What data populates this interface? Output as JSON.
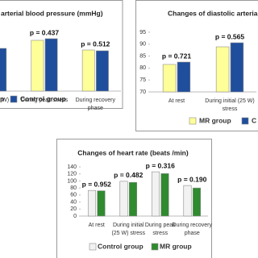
{
  "chart_data": [
    {
      "type": "bar",
      "title": "arterial blood pressure (mmHg)",
      "categories": [
        "initial (25 W)",
        "During peak stress",
        "During recovery phase"
      ],
      "series": [
        {
          "name": "p",
          "color": "#ffff99",
          "values": [
            null,
            163,
            151
          ]
        },
        {
          "name": "Control group",
          "color": "#1f4e9c",
          "values": [
            153,
            165,
            150
          ]
        }
      ],
      "annotations": [
        "02",
        "p = 0.437",
        "p = 0.512"
      ],
      "ylim": [
        100,
        200
      ]
    },
    {
      "type": "bar",
      "title": "Changes of diastolic arteria",
      "categories": [
        "At rest",
        "During initial (25 W) stress"
      ],
      "series": [
        {
          "name": "MR group",
          "color": "#ffff99",
          "values": [
            81.5,
            88.9
          ]
        },
        {
          "name": "C",
          "color": "#1f4e9c",
          "values": [
            82.5,
            90.6
          ]
        }
      ],
      "annotations": [
        "p = 0.721",
        "p = 0.565"
      ],
      "ylim": [
        70,
        95
      ],
      "yticks": [
        70,
        75,
        80,
        85,
        90,
        95
      ]
    },
    {
      "type": "bar",
      "title": "Changes of heart rate (beats /min)",
      "categories": [
        "At rest",
        "During initial (25 W) stress",
        "During peak stress",
        "During recovery phase"
      ],
      "series": [
        {
          "name": "Control group",
          "color": "#f2f2f2",
          "values": [
            73,
            99,
            126,
            87
          ]
        },
        {
          "name": "MR group",
          "color": "#2e8b2e",
          "values": [
            72,
            96,
            121,
            80
          ]
        }
      ],
      "annotations": [
        "p = 0.952",
        "p = 0.482",
        "p = 0.316",
        "p = 0.190"
      ],
      "ylim": [
        0,
        140
      ],
      "yticks": [
        0,
        20,
        40,
        60,
        80,
        100,
        120,
        140
      ]
    }
  ]
}
